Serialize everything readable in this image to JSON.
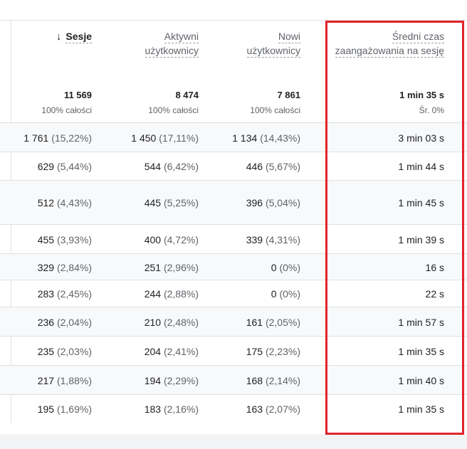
{
  "columns": [
    {
      "line1": "Sesje",
      "line2": "",
      "total": "11 569",
      "subtotal": "100% całości",
      "sorted": true
    },
    {
      "line1": "Aktywni",
      "line2": "użytkownicy",
      "total": "8 474",
      "subtotal": "100% całości",
      "sorted": false
    },
    {
      "line1": "Nowi",
      "line2": "użytkownicy",
      "total": "7 861",
      "subtotal": "100% całości",
      "sorted": false
    },
    {
      "line1": "Średni czas",
      "line2": "zaangażowania na sesję",
      "total": "1 min 35 s",
      "subtotal": "Śr. 0%",
      "sorted": false
    }
  ],
  "sort_icon": "arrow-down-icon",
  "rows": [
    {
      "c1": "1 761",
      "p1": "(15,22%)",
      "c2": "1 450",
      "p2": "(17,11%)",
      "c3": "1 134",
      "p3": "(14,43%)",
      "c4": "3 min 03 s"
    },
    {
      "c1": "629",
      "p1": "(5,44%)",
      "c2": "544",
      "p2": "(6,42%)",
      "c3": "446",
      "p3": "(5,67%)",
      "c4": "1 min 44 s"
    },
    {
      "c1": "512",
      "p1": "(4,43%)",
      "c2": "445",
      "p2": "(5,25%)",
      "c3": "396",
      "p3": "(5,04%)",
      "c4": "1 min 45 s"
    },
    {
      "c1": "455",
      "p1": "(3,93%)",
      "c2": "400",
      "p2": "(4,72%)",
      "c3": "339",
      "p3": "(4,31%)",
      "c4": "1 min 39 s"
    },
    {
      "c1": "329",
      "p1": "(2,84%)",
      "c2": "251",
      "p2": "(2,96%)",
      "c3": "0",
      "p3": "(0%)",
      "c4": "16 s"
    },
    {
      "c1": "283",
      "p1": "(2,45%)",
      "c2": "244",
      "p2": "(2,88%)",
      "c3": "0",
      "p3": "(0%)",
      "c4": "22 s"
    },
    {
      "c1": "236",
      "p1": "(2,04%)",
      "c2": "210",
      "p2": "(2,48%)",
      "c3": "161",
      "p3": "(2,05%)",
      "c4": "1 min 57 s"
    },
    {
      "c1": "235",
      "p1": "(2,03%)",
      "c2": "204",
      "p2": "(2,41%)",
      "c3": "175",
      "p3": "(2,23%)",
      "c4": "1 min 35 s"
    },
    {
      "c1": "217",
      "p1": "(1,88%)",
      "c2": "194",
      "p2": "(2,29%)",
      "c3": "168",
      "p3": "(2,14%)",
      "c4": "1 min 40 s"
    },
    {
      "c1": "195",
      "p1": "(1,69%)",
      "c2": "183",
      "p2": "(2,16%)",
      "c3": "163",
      "p3": "(2,07%)",
      "c4": "1 min 35 s"
    }
  ],
  "colors": {
    "highlight": "#e0242b",
    "row_shade": "#f8f9fa",
    "divider": "#e0e0e0"
  }
}
